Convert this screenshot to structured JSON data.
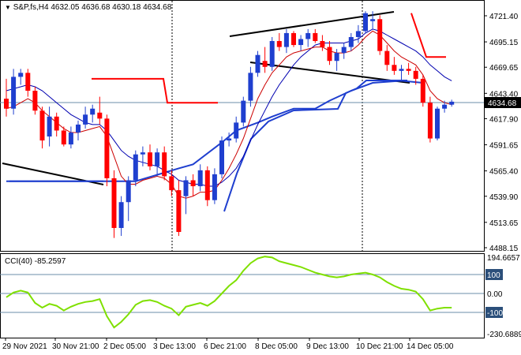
{
  "header": {
    "symbol": "S&P,fs,H4",
    "ohlc": "4632.05 4636.68 4630.18 4634.68"
  },
  "cci_header": {
    "label": "CCI(40)",
    "value": "-85.2597"
  },
  "price_axis": {
    "ticks": [
      "4721.40",
      "4695.15",
      "4669.65",
      "4643.40",
      "4617.90",
      "4591.65",
      "4565.40",
      "4539.90",
      "4513.65",
      "4488.15"
    ],
    "current_price": "4634.68"
  },
  "cci_axis": {
    "ticks": [
      "194.6657",
      "100",
      "0.00",
      "-100",
      "-230.6889"
    ]
  },
  "time_axis": {
    "labels": [
      "29 Nov 2021",
      "30 Nov 21:00",
      "2 Dec 05:00",
      "3 Dec 13:00",
      "6 Dec 21:00",
      "8 Dec 05:00",
      "9 Dec 13:00",
      "10 Dec 21:00",
      "14 Dec 05:00"
    ]
  },
  "colors": {
    "bull": "#1f3fcf",
    "bear": "#ff0000",
    "ma_blue": "#0000b0",
    "ma_red": "#cc0000",
    "cci_line": "#7fe000",
    "trendline": "#000000",
    "grid": "#6b8ea8"
  },
  "chart_data": {
    "type": "candlestick",
    "price_ylim": [
      4488.15,
      4734
    ],
    "cci_ylim": [
      -230.6889,
      194.6657
    ],
    "candles": [
      [
        4638,
        4658,
        4620,
        4628
      ],
      [
        4628,
        4668,
        4622,
        4660
      ],
      [
        4660,
        4668,
        4652,
        4664
      ],
      [
        4664,
        4668,
        4640,
        4646
      ],
      [
        4646,
        4650,
        4622,
        4626
      ],
      [
        4626,
        4630,
        4588,
        4596
      ],
      [
        4600,
        4630,
        4590,
        4620
      ],
      [
        4620,
        4624,
        4600,
        4606
      ],
      [
        4606,
        4610,
        4590,
        4592
      ],
      [
        4592,
        4610,
        4588,
        4604
      ],
      [
        4604,
        4616,
        4596,
        4612
      ],
      [
        4612,
        4630,
        4608,
        4622
      ],
      [
        4622,
        4632,
        4614,
        4628
      ],
      [
        4624,
        4640,
        4612,
        4618
      ],
      [
        4618,
        4622,
        4550,
        4558
      ],
      [
        4558,
        4566,
        4498,
        4508
      ],
      [
        4508,
        4540,
        4500,
        4534
      ],
      [
        4534,
        4560,
        4515,
        4556
      ],
      [
        4556,
        4586,
        4550,
        4582
      ],
      [
        4582,
        4590,
        4570,
        4584
      ],
      [
        4584,
        4592,
        4566,
        4570
      ],
      [
        4570,
        4588,
        4560,
        4584
      ],
      [
        4584,
        4590,
        4556,
        4560
      ],
      [
        4560,
        4566,
        4540,
        4546
      ],
      [
        4546,
        4556,
        4500,
        4504
      ],
      [
        4540,
        4560,
        4522,
        4556
      ],
      [
        4556,
        4562,
        4540,
        4550
      ],
      [
        4550,
        4572,
        4545,
        4566
      ],
      [
        4566,
        4570,
        4530,
        4536
      ],
      [
        4536,
        4568,
        4532,
        4562
      ],
      [
        4562,
        4600,
        4558,
        4596
      ],
      [
        4596,
        4604,
        4590,
        4598
      ],
      [
        4598,
        4620,
        4594,
        4614
      ],
      [
        4614,
        4640,
        4610,
        4636
      ],
      [
        4636,
        4670,
        4630,
        4664
      ],
      [
        4664,
        4686,
        4660,
        4682
      ],
      [
        4676,
        4690,
        4664,
        4670
      ],
      [
        4670,
        4700,
        4666,
        4696
      ],
      [
        4696,
        4704,
        4686,
        4690
      ],
      [
        4690,
        4708,
        4684,
        4704
      ],
      [
        4704,
        4706,
        4690,
        4692
      ],
      [
        4692,
        4702,
        4686,
        4698
      ],
      [
        4698,
        4708,
        4690,
        4704
      ],
      [
        4704,
        4708,
        4694,
        4696
      ],
      [
        4696,
        4702,
        4686,
        4690
      ],
      [
        4690,
        4696,
        4672,
        4676
      ],
      [
        4676,
        4688,
        4666,
        4684
      ],
      [
        4684,
        4694,
        4678,
        4690
      ],
      [
        4690,
        4704,
        4686,
        4700
      ],
      [
        4700,
        4712,
        4694,
        4706
      ],
      [
        4706,
        4726,
        4704,
        4724
      ],
      [
        4716,
        4726,
        4708,
        4718
      ],
      [
        4718,
        4722,
        4682,
        4686
      ],
      [
        4686,
        4692,
        4666,
        4672
      ],
      [
        4672,
        4680,
        4662,
        4666
      ],
      [
        4666,
        4672,
        4656,
        4668
      ],
      [
        4668,
        4674,
        4662,
        4666
      ],
      [
        4666,
        4670,
        4652,
        4658
      ],
      [
        4658,
        4662,
        4630,
        4634
      ],
      [
        4634,
        4640,
        4594,
        4598
      ],
      [
        4598,
        4630,
        4596,
        4628
      ],
      [
        4628,
        4636,
        4624,
        4632
      ],
      [
        4632,
        4637,
        4630,
        4635
      ]
    ],
    "ma_blue": [
      4646,
      4648,
      4650,
      4652,
      4650,
      4646,
      4640,
      4634,
      4628,
      4622,
      4618,
      4614,
      4612,
      4612,
      4606,
      4596,
      4586,
      4580,
      4576,
      4574,
      4572,
      4570,
      4566,
      4562,
      4556,
      4554,
      4552,
      4552,
      4550,
      4550,
      4554,
      4560,
      4568,
      4580,
      4596,
      4612,
      4626,
      4640,
      4652,
      4662,
      4672,
      4680,
      4686,
      4692,
      4694,
      4694,
      4694,
      4694,
      4696,
      4698,
      4704,
      4708,
      4706,
      4702,
      4698,
      4694,
      4690,
      4686,
      4680,
      4672,
      4666,
      4660,
      4656
    ],
    "ma_red": [
      4628,
      4630,
      4634,
      4638,
      4634,
      4626,
      4620,
      4614,
      4608,
      4604,
      4604,
      4606,
      4608,
      4610,
      4600,
      4580,
      4560,
      4552,
      4552,
      4556,
      4558,
      4560,
      4558,
      4552,
      4540,
      4538,
      4540,
      4544,
      4544,
      4546,
      4556,
      4568,
      4582,
      4598,
      4618,
      4638,
      4652,
      4664,
      4672,
      4680,
      4684,
      4686,
      4688,
      4690,
      4690,
      4686,
      4684,
      4684,
      4686,
      4692,
      4700,
      4706,
      4702,
      4694,
      4686,
      4680,
      4676,
      4672,
      4662,
      4646,
      4638,
      4634,
      4632
    ],
    "sr_blue_line": [
      [
        0,
        4555
      ],
      [
        18,
        4555
      ],
      [
        24,
        4568
      ],
      [
        26,
        4572
      ],
      [
        30,
        4594
      ],
      [
        32,
        4606
      ],
      [
        35,
        4614
      ],
      [
        37,
        4620
      ],
      [
        40,
        4628
      ],
      [
        43,
        4628
      ],
      [
        45,
        4636
      ],
      [
        48,
        4646
      ],
      [
        51,
        4654
      ],
      [
        55,
        4656
      ],
      [
        58,
        4654
      ]
    ],
    "sr_red_line": [
      [
        16,
        4658
      ],
      [
        29,
        4658
      ],
      [
        30,
        4634
      ],
      [
        39,
        4634
      ]
    ],
    "sr_red_upper": [
      [
        57,
        4724
      ],
      [
        59,
        4688
      ],
      [
        62,
        4688
      ]
    ],
    "cci_values": [
      -20,
      5,
      15,
      5,
      -50,
      -75,
      -55,
      -65,
      -90,
      -70,
      -55,
      -45,
      -40,
      -30,
      -120,
      -180,
      -150,
      -110,
      -60,
      -40,
      -35,
      -45,
      -65,
      -80,
      -115,
      -70,
      -60,
      -50,
      -65,
      -40,
      0,
      40,
      70,
      120,
      160,
      185,
      195,
      190,
      170,
      160,
      150,
      140,
      125,
      110,
      100,
      90,
      85,
      90,
      100,
      105,
      110,
      100,
      85,
      60,
      40,
      25,
      20,
      10,
      -30,
      -90,
      -80,
      -75,
      -75
    ]
  }
}
